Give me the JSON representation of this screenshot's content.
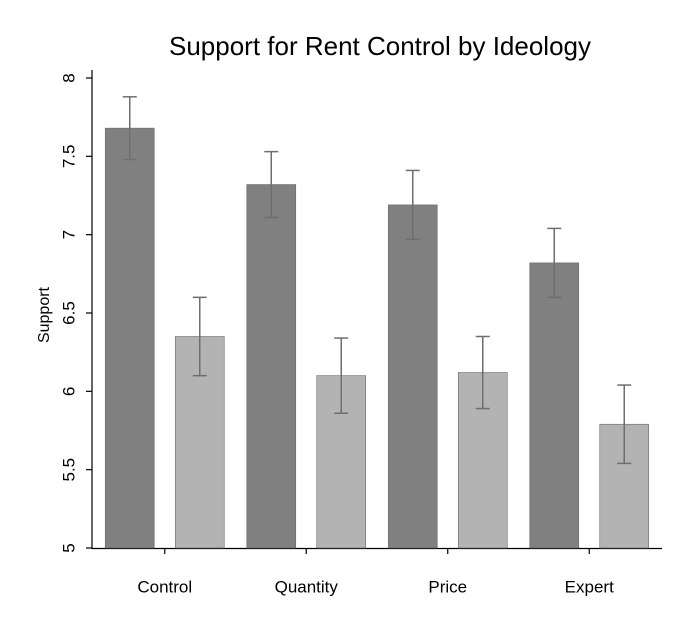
{
  "chart_data": {
    "type": "bar",
    "title": "Support for Rent Control by Ideology",
    "y_label": "Support",
    "categories": [
      "Control",
      "Quantity",
      "Price",
      "Expert"
    ],
    "series": [
      {
        "color": "#808080",
        "values": [
          7.68,
          7.32,
          7.19,
          6.82
        ],
        "errors": [
          0.2,
          0.21,
          0.22,
          0.22
        ]
      },
      {
        "color": "#b3b3b3",
        "values": [
          6.35,
          6.1,
          6.12,
          5.79
        ],
        "errors": [
          0.25,
          0.24,
          0.23,
          0.25
        ]
      }
    ],
    "error_color": "#6e6e6e",
    "ylim": [
      5,
      8
    ],
    "yticks": [
      5,
      5.5,
      6,
      6.5,
      7,
      7.5,
      8
    ],
    "grid": false
  }
}
